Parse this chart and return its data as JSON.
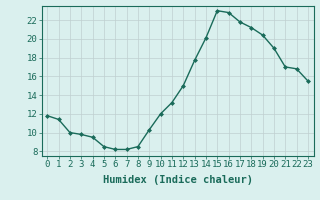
{
  "x": [
    0,
    1,
    2,
    3,
    4,
    5,
    6,
    7,
    8,
    9,
    10,
    11,
    12,
    13,
    14,
    15,
    16,
    17,
    18,
    19,
    20,
    21,
    22,
    23
  ],
  "y": [
    11.8,
    11.4,
    10.0,
    9.8,
    9.5,
    8.5,
    8.2,
    8.2,
    8.5,
    10.3,
    12.0,
    13.2,
    15.0,
    17.7,
    20.1,
    23.0,
    22.8,
    21.8,
    21.2,
    20.4,
    19.0,
    17.0,
    16.8,
    15.5
  ],
  "line_color": "#1a6b5a",
  "marker": "D",
  "marker_size": 2.0,
  "linewidth": 1.0,
  "bg_color": "#daf0ee",
  "grid_color": "#c0d0d0",
  "xlabel": "Humidex (Indice chaleur)",
  "xlabel_fontsize": 7.5,
  "tick_fontsize": 6.5,
  "yticks": [
    8,
    10,
    12,
    14,
    16,
    18,
    20,
    22
  ],
  "xticks": [
    0,
    1,
    2,
    3,
    4,
    5,
    6,
    7,
    8,
    9,
    10,
    11,
    12,
    13,
    14,
    15,
    16,
    17,
    18,
    19,
    20,
    21,
    22,
    23
  ],
  "ylim": [
    7.5,
    23.5
  ],
  "xlim": [
    -0.5,
    23.5
  ]
}
